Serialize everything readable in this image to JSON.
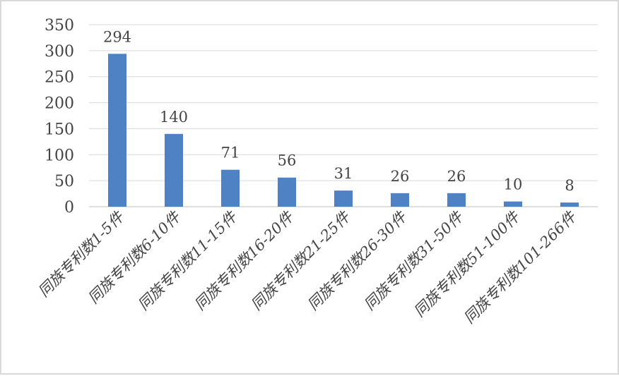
{
  "chart_data": {
    "type": "bar",
    "categories": [
      "同族专利数1-5件",
      "同族专利数6-10件",
      "同族专利数11-15件",
      "同族专利数16-20件",
      "同族专利数21-25件",
      "同族专利数26-30件",
      "同族专利数31-50件",
      "同族专利数51-100件",
      "同族专利数101-266件"
    ],
    "values": [
      294,
      140,
      71,
      56,
      31,
      26,
      26,
      10,
      8
    ],
    "data_labels": [
      "294",
      "140",
      "71",
      "56",
      "31",
      "26",
      "26",
      "10",
      "8"
    ],
    "title": "",
    "xlabel": "",
    "ylabel": "",
    "ylim": [
      0,
      350
    ],
    "yticks": [
      "0",
      "50",
      "100",
      "150",
      "200",
      "250",
      "300",
      "350"
    ],
    "grid": true,
    "legend": "none",
    "bar_color": "#4f81c5",
    "grid_color": "#d9d9d9"
  }
}
